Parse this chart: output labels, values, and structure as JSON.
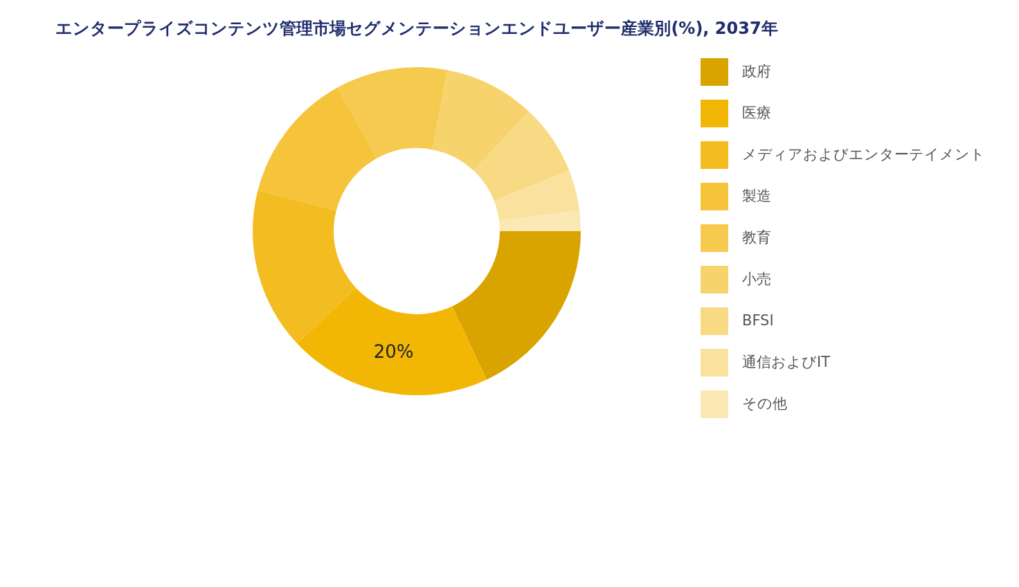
{
  "chart_data": {
    "type": "donut",
    "title": "エンタープライズコンテンツ管理市場セグメンテーションエンドユーザー産業別(%), 2037年",
    "categories": [
      "政府",
      "医療",
      "メディアおよびエンターテイメント",
      "製造",
      "教育",
      "小売",
      "BFSI",
      "通信およびIT",
      "その他"
    ],
    "values": [
      18,
      20,
      16,
      13,
      11,
      9,
      7,
      4,
      2
    ],
    "colors": [
      "#d9a400",
      "#f2b705",
      "#f3bc20",
      "#f5c43a",
      "#f6ca4f",
      "#f7d36e",
      "#f8da85",
      "#fae29e",
      "#fbe8b5"
    ],
    "value_labels": [
      null,
      "20%",
      null,
      null,
      null,
      null,
      null,
      null,
      null
    ],
    "legend": "right"
  }
}
